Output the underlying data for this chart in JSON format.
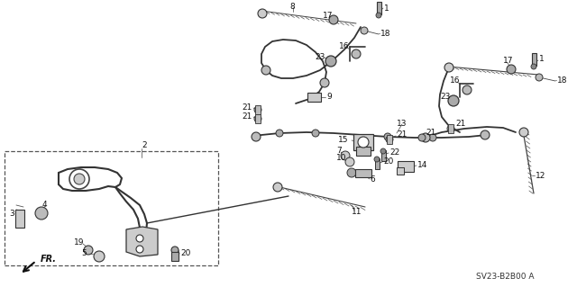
{
  "bg_color": "#ffffff",
  "diagram_ref": "SV23-B2B00 A",
  "fig_w": 6.4,
  "fig_h": 3.19,
  "dpi": 100
}
